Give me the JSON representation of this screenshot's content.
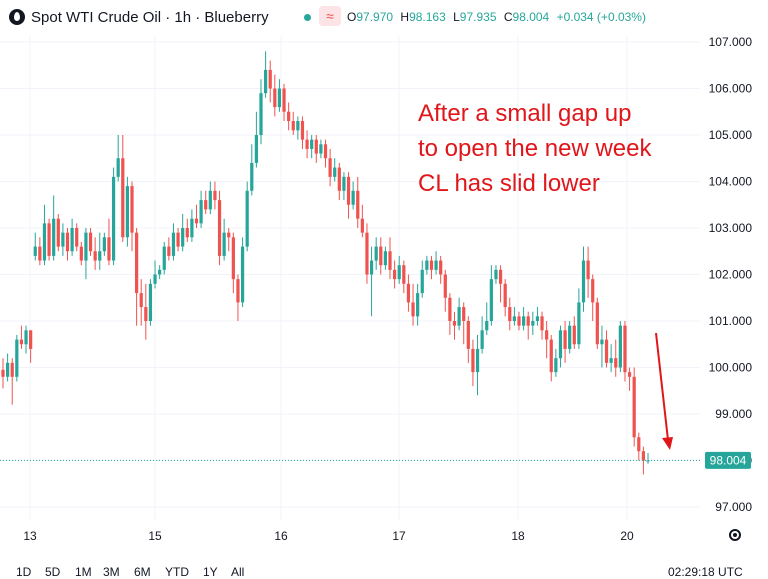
{
  "header": {
    "title": "Spot WTI Crude Oil · 1h · Blueberry",
    "ohlc": [
      {
        "label": "O",
        "value": "97.970"
      },
      {
        "label": "H",
        "value": "98.163"
      },
      {
        "label": "L",
        "value": "97.935"
      },
      {
        "label": "C",
        "value": "98.004"
      }
    ],
    "change": "+0.034 (+0.03%)",
    "replay_glyph": "≈",
    "colors": {
      "up": "#26a69a",
      "down": "#ef5350",
      "annotation": "#e0161b"
    }
  },
  "annotation": {
    "lines": [
      "After a small gap up",
      "to open the new week",
      "CL has slid lower"
    ]
  },
  "price_label": "98.004",
  "footer": {
    "ranges": [
      "1D",
      "5D",
      "1M",
      "3M",
      "6M",
      "YTD",
      "1Y",
      "All"
    ],
    "clock": "02:29:18 UTC"
  },
  "chart_data": {
    "type": "candlestick",
    "y_axis": {
      "ticks": [
        "107.000",
        "106.000",
        "105.000",
        "104.000",
        "103.000",
        "102.000",
        "101.000",
        "100.000",
        "99.000",
        "98.000",
        "97.000"
      ],
      "range": [
        96.85,
        107.3
      ],
      "side": "right"
    },
    "x_axis": {
      "ticks": [
        "13",
        "15",
        "16",
        "17",
        "18",
        "20"
      ]
    },
    "last_price": 98.004,
    "candles": [
      [
        99.95,
        99.8,
        100.2,
        99.55
      ],
      [
        99.8,
        100.1,
        100.3,
        99.7
      ],
      [
        100.1,
        99.8,
        100.2,
        99.2
      ],
      [
        99.8,
        100.6,
        100.7,
        99.7
      ],
      [
        100.6,
        100.5,
        100.9,
        100.4
      ],
      [
        100.5,
        100.8,
        100.9,
        100.3
      ],
      [
        100.8,
        100.4,
        100.8,
        100.1
      ],
      [
        102.4,
        102.6,
        102.9,
        102.3
      ],
      [
        102.6,
        102.3,
        102.8,
        102.2
      ],
      [
        102.3,
        103.1,
        103.5,
        102.2
      ],
      [
        103.1,
        102.4,
        103.2,
        102.3
      ],
      [
        102.4,
        103.2,
        103.7,
        102.3
      ],
      [
        103.2,
        102.6,
        103.3,
        102.5
      ],
      [
        102.6,
        102.9,
        103.1,
        102.4
      ],
      [
        102.9,
        102.5,
        103.0,
        102.3
      ],
      [
        102.5,
        103.0,
        103.2,
        102.4
      ],
      [
        103.0,
        102.6,
        103.1,
        102.5
      ],
      [
        102.6,
        102.3,
        102.7,
        102.2
      ],
      [
        102.3,
        102.9,
        103.0,
        101.9
      ],
      [
        102.9,
        102.5,
        103.0,
        102.4
      ],
      [
        102.5,
        102.3,
        102.8,
        102.1
      ],
      [
        102.3,
        102.5,
        102.9,
        102.1
      ],
      [
        102.5,
        102.8,
        102.9,
        102.4
      ],
      [
        102.8,
        102.3,
        103.2,
        102.2
      ],
      [
        102.3,
        104.1,
        104.3,
        102.2
      ],
      [
        104.1,
        104.5,
        105.0,
        104.0
      ],
      [
        104.5,
        102.8,
        105.0,
        102.7
      ],
      [
        102.8,
        103.9,
        104.1,
        102.6
      ],
      [
        103.9,
        102.9,
        104.0,
        102.5
      ],
      [
        102.9,
        101.6,
        103.0,
        100.9
      ],
      [
        101.6,
        101.3,
        101.9,
        100.9
      ],
      [
        101.3,
        101.0,
        101.8,
        100.6
      ],
      [
        101.0,
        101.8,
        101.9,
        100.9
      ],
      [
        101.8,
        102.0,
        102.3,
        101.7
      ],
      [
        102.0,
        102.1,
        102.2,
        101.9
      ],
      [
        102.1,
        102.6,
        102.7,
        102.0
      ],
      [
        102.6,
        102.4,
        102.8,
        102.3
      ],
      [
        102.4,
        102.9,
        103.1,
        102.3
      ],
      [
        102.9,
        102.6,
        103.0,
        102.5
      ],
      [
        102.6,
        103.0,
        103.3,
        102.5
      ],
      [
        103.0,
        102.8,
        103.2,
        102.7
      ],
      [
        102.8,
        103.2,
        103.4,
        102.7
      ],
      [
        103.2,
        103.1,
        103.5,
        103.0
      ],
      [
        103.1,
        103.6,
        103.8,
        103.0
      ],
      [
        103.6,
        103.4,
        103.8,
        103.3
      ],
      [
        103.4,
        103.8,
        104.0,
        103.3
      ],
      [
        103.8,
        103.6,
        104.0,
        103.4
      ],
      [
        103.6,
        102.4,
        103.8,
        102.2
      ],
      [
        102.4,
        102.9,
        103.2,
        102.3
      ],
      [
        102.9,
        102.8,
        103.0,
        102.5
      ],
      [
        102.8,
        101.9,
        102.9,
        101.6
      ],
      [
        101.9,
        101.4,
        102.0,
        101.0
      ],
      [
        101.4,
        102.6,
        102.8,
        101.3
      ],
      [
        102.6,
        103.8,
        104.0,
        102.5
      ],
      [
        103.8,
        104.4,
        104.8,
        103.7
      ],
      [
        104.4,
        105.0,
        105.5,
        104.3
      ],
      [
        105.0,
        105.9,
        106.2,
        104.8
      ],
      [
        105.9,
        106.4,
        106.8,
        105.8
      ],
      [
        106.4,
        106.0,
        106.6,
        105.7
      ],
      [
        106.0,
        105.6,
        106.3,
        105.4
      ],
      [
        105.6,
        106.0,
        106.2,
        105.5
      ],
      [
        106.0,
        105.5,
        106.1,
        105.3
      ],
      [
        105.5,
        105.3,
        105.7,
        105.1
      ],
      [
        105.3,
        105.1,
        105.5,
        105.0
      ],
      [
        105.1,
        105.3,
        105.4,
        104.9
      ],
      [
        105.3,
        104.9,
        105.4,
        104.7
      ],
      [
        104.9,
        104.7,
        105.1,
        104.5
      ],
      [
        104.7,
        104.9,
        105.0,
        104.5
      ],
      [
        104.9,
        104.6,
        105.0,
        104.4
      ],
      [
        104.6,
        104.8,
        104.9,
        104.5
      ],
      [
        104.8,
        104.5,
        104.9,
        104.3
      ],
      [
        104.5,
        104.1,
        104.7,
        103.9
      ],
      [
        104.1,
        104.3,
        104.5,
        104.0
      ],
      [
        104.3,
        103.8,
        104.4,
        103.6
      ],
      [
        103.8,
        104.1,
        104.2,
        103.6
      ],
      [
        104.1,
        103.5,
        104.2,
        103.2
      ],
      [
        103.5,
        103.8,
        104.0,
        103.4
      ],
      [
        103.8,
        103.2,
        104.1,
        103.0
      ],
      [
        103.2,
        102.9,
        103.5,
        102.8
      ],
      [
        102.9,
        102.0,
        103.1,
        101.8
      ],
      [
        102.0,
        102.3,
        102.6,
        101.1
      ],
      [
        102.3,
        102.6,
        102.8,
        102.1
      ],
      [
        102.6,
        102.2,
        102.8,
        102.0
      ],
      [
        102.2,
        102.5,
        102.6,
        102.1
      ],
      [
        102.5,
        102.1,
        102.8,
        101.9
      ],
      [
        102.1,
        101.9,
        102.3,
        101.7
      ],
      [
        101.9,
        102.2,
        102.4,
        101.8
      ],
      [
        102.2,
        101.8,
        102.3,
        101.6
      ],
      [
        101.8,
        101.4,
        102.0,
        101.2
      ],
      [
        101.4,
        101.1,
        101.8,
        100.9
      ],
      [
        101.1,
        101.6,
        101.8,
        100.9
      ],
      [
        101.6,
        102.1,
        102.3,
        101.5
      ],
      [
        102.1,
        102.3,
        102.4,
        102.0
      ],
      [
        102.3,
        102.1,
        102.4,
        101.9
      ],
      [
        102.1,
        102.3,
        102.5,
        102.0
      ],
      [
        102.3,
        102.0,
        102.4,
        101.8
      ],
      [
        102.0,
        101.5,
        102.1,
        101.2
      ],
      [
        101.5,
        101.0,
        101.6,
        100.7
      ],
      [
        101.0,
        100.9,
        101.2,
        100.6
      ],
      [
        100.9,
        101.3,
        101.5,
        100.8
      ],
      [
        101.3,
        101.0,
        101.4,
        100.5
      ],
      [
        101.0,
        100.4,
        101.1,
        100.1
      ],
      [
        100.4,
        99.9,
        100.6,
        99.6
      ],
      [
        99.9,
        100.4,
        100.7,
        99.4
      ],
      [
        100.4,
        100.8,
        101.1,
        100.3
      ],
      [
        100.8,
        101.0,
        101.4,
        100.7
      ],
      [
        101.0,
        101.9,
        102.2,
        100.9
      ],
      [
        101.9,
        102.1,
        102.2,
        101.8
      ],
      [
        102.1,
        101.8,
        102.2,
        101.4
      ],
      [
        101.8,
        101.3,
        101.9,
        101.1
      ],
      [
        101.3,
        101.0,
        101.5,
        100.8
      ],
      [
        101.0,
        101.1,
        101.3,
        100.9
      ],
      [
        101.1,
        100.9,
        101.2,
        100.8
      ],
      [
        100.9,
        101.1,
        101.3,
        100.8
      ],
      [
        101.1,
        100.9,
        101.2,
        100.6
      ],
      [
        100.9,
        101.0,
        101.2,
        100.7
      ],
      [
        101.0,
        101.1,
        101.3,
        100.9
      ],
      [
        101.1,
        100.8,
        101.2,
        100.6
      ],
      [
        100.8,
        100.6,
        101.0,
        100.2
      ],
      [
        100.6,
        99.9,
        100.7,
        99.7
      ],
      [
        99.9,
        100.2,
        100.4,
        99.8
      ],
      [
        100.2,
        100.8,
        100.9,
        100.0
      ],
      [
        100.8,
        100.4,
        101.0,
        100.1
      ],
      [
        100.4,
        100.9,
        101.0,
        100.3
      ],
      [
        100.9,
        100.5,
        101.1,
        100.4
      ],
      [
        100.5,
        101.4,
        101.7,
        100.4
      ],
      [
        101.4,
        102.3,
        102.6,
        101.2
      ],
      [
        102.3,
        101.9,
        102.6,
        101.5
      ],
      [
        101.9,
        101.4,
        102.0,
        101.0
      ],
      [
        101.4,
        100.5,
        101.5,
        100.4
      ],
      [
        100.5,
        100.6,
        100.9,
        100.0
      ],
      [
        100.6,
        100.1,
        100.8,
        100.0
      ],
      [
        100.1,
        100.2,
        100.5,
        99.9
      ],
      [
        100.2,
        100.0,
        100.6,
        99.8
      ],
      [
        100.0,
        100.9,
        101.0,
        99.9
      ],
      [
        100.9,
        99.9,
        101.0,
        99.7
      ],
      [
        99.9,
        99.8,
        100.0,
        99.5
      ],
      [
        99.8,
        98.5,
        100.0,
        98.3
      ],
      [
        98.5,
        98.2,
        98.6,
        98.0
      ],
      [
        98.2,
        98.0,
        98.3,
        97.7
      ],
      [
        98.0,
        98.0,
        98.16,
        97.93
      ]
    ]
  }
}
